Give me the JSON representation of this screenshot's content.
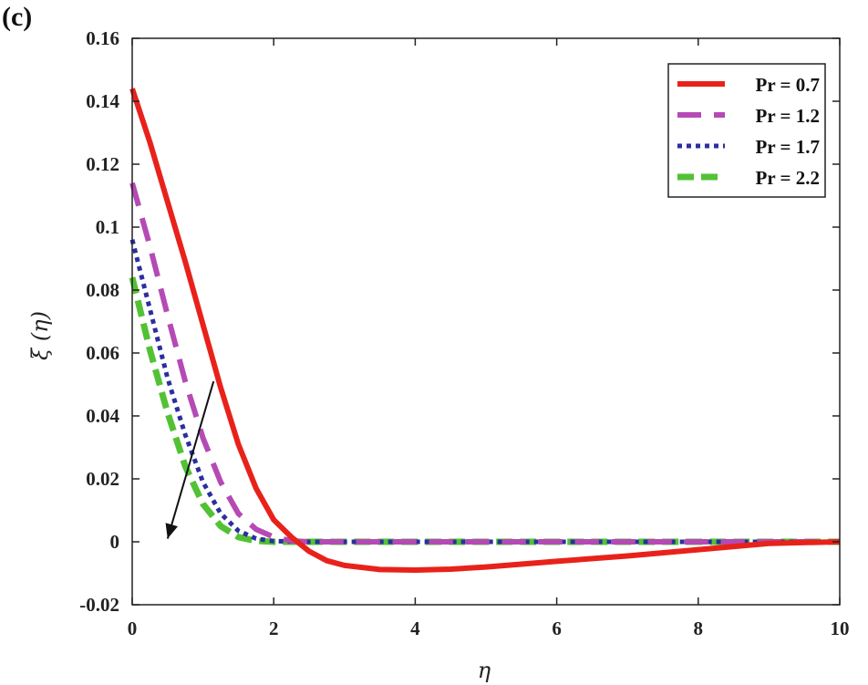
{
  "panel_label": "(c)",
  "chart_data": {
    "type": "line",
    "title": "",
    "xlabel": "η",
    "ylabel": "ξ (η)",
    "xlim": [
      0,
      10
    ],
    "ylim": [
      -0.02,
      0.16
    ],
    "xticks": [
      0,
      2,
      4,
      6,
      8,
      10
    ],
    "xtick_labels": [
      "0",
      "2",
      "4",
      "6",
      "8",
      "10"
    ],
    "yticks": [
      -0.02,
      0,
      0.02,
      0.04,
      0.06,
      0.08,
      0.1,
      0.12,
      0.14,
      0.16
    ],
    "ytick_labels": [
      "-0.02",
      "0",
      "0.02",
      "0.04",
      "0.06",
      "0.08",
      "0.1",
      "0.12",
      "0.14",
      "0.16"
    ],
    "grid": false,
    "legend_position": "top-right",
    "annotation": "arrow pointing downward indicating increasing Pr",
    "series": [
      {
        "name": "Pr = 0.7",
        "color": "#e8221b",
        "dash": "solid",
        "x": [
          0,
          0.25,
          0.5,
          0.75,
          1.0,
          1.25,
          1.5,
          1.75,
          2.0,
          2.25,
          2.5,
          2.75,
          3.0,
          3.5,
          4.0,
          4.5,
          5.0,
          6.0,
          7.0,
          8.0,
          9.0,
          10.0
        ],
        "y": [
          0.144,
          0.127,
          0.108,
          0.089,
          0.069,
          0.049,
          0.031,
          0.017,
          0.007,
          0.0015,
          -0.003,
          -0.006,
          -0.0075,
          -0.0088,
          -0.009,
          -0.0087,
          -0.008,
          -0.0062,
          -0.0045,
          -0.0025,
          -0.0005,
          0
        ]
      },
      {
        "name": "Pr = 1.2",
        "color": "#b54ab5",
        "dash": "long-dash",
        "x": [
          0,
          0.25,
          0.5,
          0.75,
          1.0,
          1.25,
          1.5,
          1.75,
          2.0,
          2.25,
          2.5,
          3.0,
          4.0,
          6.0,
          8.0,
          10.0
        ],
        "y": [
          0.114,
          0.094,
          0.072,
          0.051,
          0.033,
          0.019,
          0.009,
          0.004,
          0.0015,
          0.0003,
          0,
          0,
          0,
          0,
          0,
          0
        ]
      },
      {
        "name": "Pr = 1.7",
        "color": "#2b2f9e",
        "dash": "dotted",
        "x": [
          0,
          0.25,
          0.5,
          0.75,
          1.0,
          1.25,
          1.5,
          1.75,
          2.0,
          2.5,
          3.0,
          4.0,
          6.0,
          8.0,
          10.0
        ],
        "y": [
          0.096,
          0.074,
          0.052,
          0.034,
          0.019,
          0.009,
          0.0035,
          0.001,
          0.0002,
          0,
          0,
          0,
          0,
          0,
          0
        ]
      },
      {
        "name": "Pr = 2.2",
        "color": "#52c234",
        "dash": "dash-dot",
        "x": [
          0,
          0.25,
          0.5,
          0.75,
          1.0,
          1.25,
          1.5,
          1.75,
          2.0,
          2.5,
          3.0,
          4.0,
          6.0,
          8.0,
          10.0
        ],
        "y": [
          0.084,
          0.061,
          0.041,
          0.024,
          0.012,
          0.005,
          0.0015,
          0.0003,
          0,
          0,
          0,
          0,
          0,
          0,
          0
        ]
      }
    ],
    "arrow": {
      "from": [
        1.15,
        0.051
      ],
      "to": [
        0.5,
        0.001
      ]
    }
  }
}
